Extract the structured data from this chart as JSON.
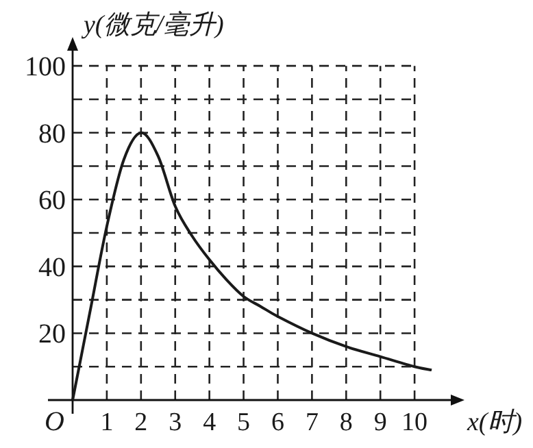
{
  "chart_data": {
    "type": "line",
    "xlabel": "x(时)",
    "ylabel": "y(微克/毫升)",
    "annotations": [
      "O"
    ],
    "x": [
      0,
      0.5,
      1,
      1.5,
      2,
      2.5,
      3,
      3.5,
      4,
      4.5,
      5,
      5.5,
      6,
      7,
      8,
      9,
      10,
      10.5
    ],
    "series": [
      {
        "color": "#1a1a1a",
        "values": [
          0,
          26,
          52,
          72,
          80,
          73,
          58,
          49,
          42,
          36,
          31,
          28,
          25,
          20,
          16,
          13,
          10,
          9
        ]
      }
    ],
    "xlim": [
      0,
      11.3
    ],
    "ylim": [
      0,
      107
    ],
    "xticks": [
      1,
      2,
      3,
      4,
      5,
      6,
      7,
      8,
      9,
      10
    ],
    "yticks": [
      {
        "value": 10,
        "label": null
      },
      20,
      {
        "value": 30,
        "label": null
      },
      40,
      {
        "value": 50,
        "label": null
      },
      60,
      {
        "value": 70,
        "label": null
      },
      80,
      {
        "value": 90,
        "label": null
      },
      100
    ],
    "grid": true,
    "line_style": "solid",
    "marker": "none"
  }
}
